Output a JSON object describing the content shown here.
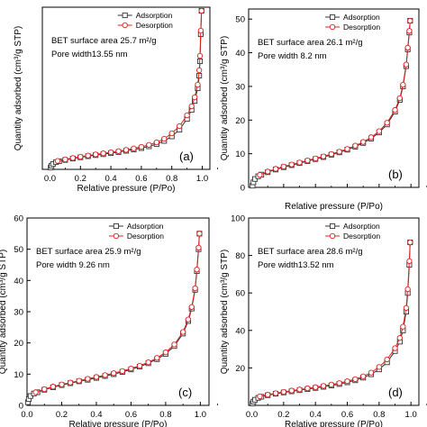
{
  "colors": {
    "adsorption": "#333333",
    "desorption": "#e02020",
    "axis": "#000000"
  },
  "chart_data": [
    {
      "type": "line",
      "panel_label": "(a)",
      "xlabel": "Relative pressure (P/Po)",
      "ylabel": "Quantity adsorbed (cm³/g STP)",
      "xlim": [
        -0.05,
        1.05
      ],
      "ylim": [
        0,
        90
      ],
      "xticks": [
        "0.0",
        "0.2",
        "0.4",
        "0.6",
        "0.8",
        "1.0"
      ],
      "yticks": [],
      "ytick_labels": [],
      "annotation_1": "BET surface area 25.7 m²/g",
      "annotation_2": "Pore width13.55 nm",
      "legend": [
        "Adsorption",
        "Desorption"
      ],
      "series": [
        {
          "name": "Adsorption",
          "values": [
            [
              0.005,
              1.0
            ],
            [
              0.01,
              2.0
            ],
            [
              0.02,
              3.0
            ],
            [
              0.04,
              4.0
            ],
            [
              0.06,
              4.5
            ],
            [
              0.1,
              5.2
            ],
            [
              0.15,
              6.0
            ],
            [
              0.2,
              6.7
            ],
            [
              0.25,
              7.3
            ],
            [
              0.3,
              7.9
            ],
            [
              0.35,
              8.4
            ],
            [
              0.4,
              9.0
            ],
            [
              0.45,
              9.6
            ],
            [
              0.5,
              10.3
            ],
            [
              0.55,
              11.0
            ],
            [
              0.6,
              11.8
            ],
            [
              0.65,
              12.8
            ],
            [
              0.7,
              14.0
            ],
            [
              0.75,
              15.8
            ],
            [
              0.8,
              18.3
            ],
            [
              0.85,
              22.0
            ],
            [
              0.9,
              28.0
            ],
            [
              0.93,
              33.0
            ],
            [
              0.95,
              38.0
            ],
            [
              0.97,
              45.0
            ],
            [
              0.98,
              52.0
            ],
            [
              0.985,
              60.0
            ],
            [
              0.99,
              75.0
            ],
            [
              0.995,
              88.0
            ]
          ]
        },
        {
          "name": "Desorption",
          "values": [
            [
              0.05,
              4.7
            ],
            [
              0.1,
              5.5
            ],
            [
              0.15,
              6.3
            ],
            [
              0.2,
              7.0
            ],
            [
              0.25,
              7.7
            ],
            [
              0.3,
              8.3
            ],
            [
              0.35,
              8.9
            ],
            [
              0.4,
              9.5
            ],
            [
              0.45,
              10.1
            ],
            [
              0.5,
              10.8
            ],
            [
              0.55,
              11.6
            ],
            [
              0.6,
              12.5
            ],
            [
              0.65,
              13.6
            ],
            [
              0.7,
              15.0
            ],
            [
              0.75,
              17.0
            ],
            [
              0.8,
              20.0
            ],
            [
              0.85,
              24.0
            ],
            [
              0.9,
              30.0
            ],
            [
              0.93,
              35.0
            ],
            [
              0.95,
              40.0
            ],
            [
              0.97,
              47.0
            ],
            [
              0.98,
              55.0
            ],
            [
              0.985,
              63.0
            ],
            [
              0.99,
              77.0
            ],
            [
              0.995,
              88.0
            ]
          ]
        }
      ]
    },
    {
      "type": "line",
      "panel_label": "(b)",
      "xlabel": "Relative pressure (P/Po)",
      "ylabel": "Quantity adsorbed (cm³/g STP)",
      "xlim": [
        -0.02,
        1.05
      ],
      "ylim": [
        0,
        53
      ],
      "xticks": [],
      "yticks": [
        0,
        10,
        20,
        30,
        40,
        50
      ],
      "ytick_labels": [
        "0",
        "10",
        "20",
        "30",
        "40",
        "50"
      ],
      "annotation_1": "BET surface area 26.1 m²/g",
      "annotation_2": "Pore width 8.2 nm",
      "legend": [
        "Adsorption",
        "Desorption"
      ],
      "series": [
        {
          "name": "Adsorption",
          "values": [
            [
              0.005,
              0.5
            ],
            [
              0.01,
              1.5
            ],
            [
              0.02,
              2.5
            ],
            [
              0.04,
              3.3
            ],
            [
              0.06,
              3.8
            ],
            [
              0.1,
              4.5
            ],
            [
              0.15,
              5.3
            ],
            [
              0.2,
              6.0
            ],
            [
              0.25,
              6.6
            ],
            [
              0.3,
              7.2
            ],
            [
              0.35,
              7.8
            ],
            [
              0.4,
              8.4
            ],
            [
              0.45,
              9.0
            ],
            [
              0.5,
              9.7
            ],
            [
              0.55,
              10.4
            ],
            [
              0.6,
              11.2
            ],
            [
              0.65,
              12.1
            ],
            [
              0.7,
              13.2
            ],
            [
              0.75,
              14.5
            ],
            [
              0.8,
              16.3
            ],
            [
              0.85,
              18.7
            ],
            [
              0.9,
              22.5
            ],
            [
              0.93,
              26.0
            ],
            [
              0.95,
              30.0
            ],
            [
              0.97,
              36.0
            ],
            [
              0.98,
              41.0
            ],
            [
              0.99,
              46.0
            ],
            [
              0.995,
              49.5
            ]
          ]
        },
        {
          "name": "Desorption",
          "values": [
            [
              0.05,
              3.7
            ],
            [
              0.1,
              4.7
            ],
            [
              0.15,
              5.5
            ],
            [
              0.2,
              6.2
            ],
            [
              0.25,
              6.8
            ],
            [
              0.3,
              7.4
            ],
            [
              0.35,
              8.0
            ],
            [
              0.4,
              8.6
            ],
            [
              0.45,
              9.2
            ],
            [
              0.5,
              9.9
            ],
            [
              0.55,
              10.6
            ],
            [
              0.6,
              11.4
            ],
            [
              0.65,
              12.4
            ],
            [
              0.7,
              13.5
            ],
            [
              0.75,
              14.9
            ],
            [
              0.8,
              16.7
            ],
            [
              0.85,
              19.2
            ],
            [
              0.9,
              23.0
            ],
            [
              0.93,
              26.5
            ],
            [
              0.95,
              30.5
            ],
            [
              0.97,
              36.5
            ],
            [
              0.98,
              41.5
            ],
            [
              0.99,
              46.5
            ],
            [
              0.995,
              49.5
            ]
          ]
        }
      ]
    },
    {
      "type": "line",
      "panel_label": "(c)",
      "xlabel": "Relative pressure (P/Po)",
      "ylabel": "Quantity adsorbed (cm³/g STP)",
      "xlim": [
        0.0,
        1.05
      ],
      "ylim": [
        0,
        60
      ],
      "xticks": [
        "0.0",
        "0.2",
        "0.4",
        "0.6",
        "0.8",
        "1.0"
      ],
      "yticks": [
        0,
        10,
        20,
        30,
        40,
        50,
        60
      ],
      "ytick_labels": [
        "0",
        "10",
        "20",
        "30",
        "40",
        "50",
        "60"
      ],
      "annotation_1": "BET surface area 25.9 m²/g",
      "annotation_2": "Pore width 9.26 nm",
      "legend": [
        "Adsorption",
        "Desorption"
      ],
      "series": [
        {
          "name": "Adsorption",
          "values": [
            [
              0.005,
              1.0
            ],
            [
              0.01,
              2.0
            ],
            [
              0.02,
              3.0
            ],
            [
              0.04,
              3.8
            ],
            [
              0.06,
              4.2
            ],
            [
              0.1,
              5.0
            ],
            [
              0.15,
              5.8
            ],
            [
              0.2,
              6.5
            ],
            [
              0.25,
              7.1
            ],
            [
              0.3,
              7.7
            ],
            [
              0.35,
              8.2
            ],
            [
              0.4,
              8.8
            ],
            [
              0.45,
              9.4
            ],
            [
              0.5,
              10.0
            ],
            [
              0.55,
              10.7
            ],
            [
              0.6,
              11.5
            ],
            [
              0.65,
              12.4
            ],
            [
              0.7,
              13.5
            ],
            [
              0.75,
              14.8
            ],
            [
              0.8,
              16.5
            ],
            [
              0.85,
              19.0
            ],
            [
              0.9,
              23.0
            ],
            [
              0.93,
              27.0
            ],
            [
              0.95,
              31.0
            ],
            [
              0.97,
              37.0
            ],
            [
              0.98,
              43.0
            ],
            [
              0.99,
              50.0
            ],
            [
              0.995,
              55.0
            ]
          ]
        },
        {
          "name": "Desorption",
          "values": [
            [
              0.05,
              4.2
            ],
            [
              0.1,
              5.2
            ],
            [
              0.15,
              6.0
            ],
            [
              0.2,
              6.7
            ],
            [
              0.25,
              7.3
            ],
            [
              0.3,
              7.9
            ],
            [
              0.35,
              8.5
            ],
            [
              0.4,
              9.1
            ],
            [
              0.45,
              9.7
            ],
            [
              0.5,
              10.3
            ],
            [
              0.55,
              11.0
            ],
            [
              0.6,
              11.8
            ],
            [
              0.65,
              12.7
            ],
            [
              0.7,
              13.8
            ],
            [
              0.75,
              15.2
            ],
            [
              0.8,
              17.0
            ],
            [
              0.85,
              19.5
            ],
            [
              0.9,
              23.5
            ],
            [
              0.93,
              27.5
            ],
            [
              0.95,
              31.5
            ],
            [
              0.97,
              37.5
            ],
            [
              0.98,
              43.5
            ],
            [
              0.99,
              50.5
            ],
            [
              0.995,
              55.0
            ]
          ]
        }
      ]
    },
    {
      "type": "line",
      "panel_label": "(d)",
      "xlabel": "Relative pressure (P/Po)",
      "ylabel": "Quantity adsorbed (cm³/g STP)",
      "xlim": [
        -0.02,
        1.05
      ],
      "ylim": [
        0,
        100
      ],
      "xticks": [
        "0.0",
        "0.2",
        "0.4",
        "0.6",
        "0.8",
        "1.0"
      ],
      "yticks": [
        0,
        20,
        40,
        60,
        80,
        100
      ],
      "ytick_labels": [
        "",
        "20",
        "40",
        "60",
        "80",
        "100"
      ],
      "annotation_1": "BET surface area 28.6 m²/g",
      "annotation_2": "Pore width13.52 nm",
      "legend": [
        "Adsorption",
        "Desorption"
      ],
      "series": [
        {
          "name": "Adsorption",
          "values": [
            [
              0.005,
              1.0
            ],
            [
              0.01,
              2.0
            ],
            [
              0.02,
              3.0
            ],
            [
              0.04,
              4.0
            ],
            [
              0.06,
              4.6
            ],
            [
              0.1,
              5.4
            ],
            [
              0.15,
              6.2
            ],
            [
              0.2,
              6.9
            ],
            [
              0.25,
              7.5
            ],
            [
              0.3,
              8.1
            ],
            [
              0.35,
              8.7
            ],
            [
              0.4,
              9.3
            ],
            [
              0.45,
              9.9
            ],
            [
              0.5,
              10.6
            ],
            [
              0.55,
              11.4
            ],
            [
              0.6,
              12.3
            ],
            [
              0.65,
              13.4
            ],
            [
              0.7,
              14.8
            ],
            [
              0.75,
              16.6
            ],
            [
              0.8,
              19.2
            ],
            [
              0.85,
              23.0
            ],
            [
              0.9,
              29.0
            ],
            [
              0.93,
              34.0
            ],
            [
              0.95,
              40.0
            ],
            [
              0.97,
              50.0
            ],
            [
              0.98,
              60.0
            ],
            [
              0.99,
              75.0
            ],
            [
              0.995,
              87.0
            ]
          ]
        },
        {
          "name": "Desorption",
          "values": [
            [
              0.05,
              4.8
            ],
            [
              0.1,
              5.7
            ],
            [
              0.15,
              6.5
            ],
            [
              0.2,
              7.2
            ],
            [
              0.25,
              7.9
            ],
            [
              0.3,
              8.5
            ],
            [
              0.35,
              9.1
            ],
            [
              0.4,
              9.7
            ],
            [
              0.45,
              10.4
            ],
            [
              0.5,
              11.1
            ],
            [
              0.55,
              11.9
            ],
            [
              0.6,
              12.9
            ],
            [
              0.65,
              14.0
            ],
            [
              0.7,
              15.5
            ],
            [
              0.75,
              17.5
            ],
            [
              0.8,
              20.5
            ],
            [
              0.85,
              24.5
            ],
            [
              0.9,
              30.5
            ],
            [
              0.93,
              36.0
            ],
            [
              0.95,
              42.0
            ],
            [
              0.97,
              52.0
            ],
            [
              0.98,
              62.0
            ],
            [
              0.99,
              77.0
            ],
            [
              0.995,
              87.0
            ]
          ]
        }
      ]
    }
  ]
}
